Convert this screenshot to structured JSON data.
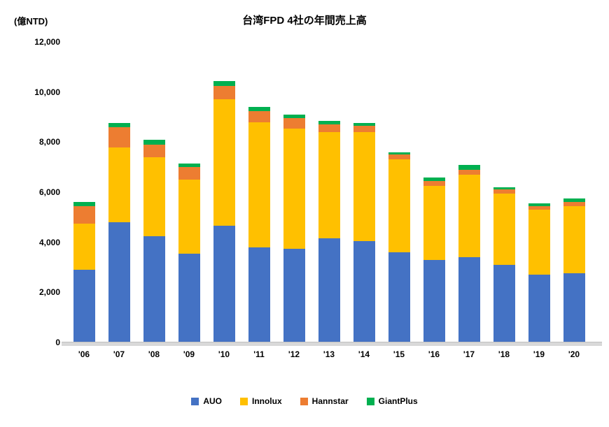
{
  "chart_data": {
    "type": "bar",
    "stacked": true,
    "title": "台湾FPD 4社の年間売上高",
    "unit_label": "(億NTD)",
    "xlabel": "",
    "ylabel": "",
    "ylim": [
      0,
      12000
    ],
    "grid": false,
    "legend_position": "bottom",
    "categories": [
      "'06",
      "'07",
      "'08",
      "'09",
      "'10",
      "'11",
      "'12",
      "'13",
      "'14",
      "'15",
      "'16",
      "'17",
      "'18",
      "'19",
      "'20"
    ],
    "y_ticks": [
      {
        "value": 0,
        "label": "0"
      },
      {
        "value": 2000,
        "label": "2,000"
      },
      {
        "value": 4000,
        "label": "4,000"
      },
      {
        "value": 6000,
        "label": "6,000"
      },
      {
        "value": 8000,
        "label": "8,000"
      },
      {
        "value": 10000,
        "label": "10,000"
      },
      {
        "value": 12000,
        "label": "12,000"
      }
    ],
    "series": [
      {
        "name": "AUO",
        "color": "#4472C4",
        "values": [
          2900,
          4800,
          4250,
          3550,
          4650,
          3800,
          3750,
          4150,
          4050,
          3600,
          3300,
          3400,
          3100,
          2700,
          2750
        ]
      },
      {
        "name": "Innolux",
        "color": "#FFC000",
        "values": [
          1850,
          3000,
          3150,
          2950,
          5050,
          5000,
          4800,
          4250,
          4350,
          3700,
          2950,
          3300,
          2850,
          2600,
          2700
        ]
      },
      {
        "name": "Hannstar",
        "color": "#ED7D31",
        "values": [
          700,
          800,
          500,
          500,
          550,
          450,
          400,
          300,
          250,
          200,
          200,
          200,
          150,
          150,
          150
        ]
      },
      {
        "name": "GiantPlus",
        "color": "#00B050",
        "values": [
          150,
          150,
          200,
          150,
          200,
          150,
          150,
          150,
          100,
          100,
          150,
          200,
          100,
          100,
          150
        ]
      }
    ]
  }
}
